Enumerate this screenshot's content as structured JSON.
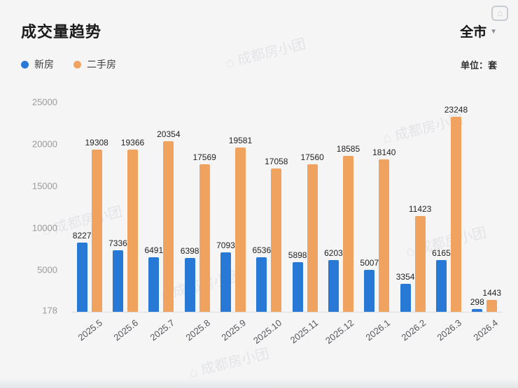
{
  "header": {
    "title": "成交量趋势",
    "region": "全市",
    "unit": "单位：套"
  },
  "icons": {
    "chevron_down": "▼",
    "logo_house": "⌂"
  },
  "watermark": {
    "text": "成都房小团"
  },
  "legend": [
    {
      "label": "新房",
      "color": "#2878D5"
    },
    {
      "label": "二手房",
      "color": "#F0A25F"
    }
  ],
  "chart_data": {
    "type": "bar",
    "title": "成交量趋势",
    "categories": [
      "2025.5",
      "2025.6",
      "2025.7",
      "2025.8",
      "2025.9",
      "2025.10",
      "2025.11",
      "2025.12",
      "2026.1",
      "2026.2",
      "2026.3",
      "2026.4"
    ],
    "series": [
      {
        "name": "新房",
        "color": "#2878D5",
        "values": [
          8227,
          7336,
          6491,
          6398,
          7093,
          6536,
          5898,
          6203,
          5007,
          3354,
          6165,
          298
        ]
      },
      {
        "name": "二手房",
        "color": "#F0A25F",
        "values": [
          19308,
          19366,
          20354,
          17569,
          19581,
          17058,
          17560,
          18585,
          18140,
          11423,
          23248,
          1443
        ]
      }
    ],
    "xlabel": "",
    "ylabel": "",
    "yticks": [
      178,
      5000,
      10000,
      15000,
      20000,
      25000
    ],
    "ylim": [
      0,
      25000
    ],
    "grid": false,
    "legend_position": "top-left",
    "value_labels": true
  }
}
